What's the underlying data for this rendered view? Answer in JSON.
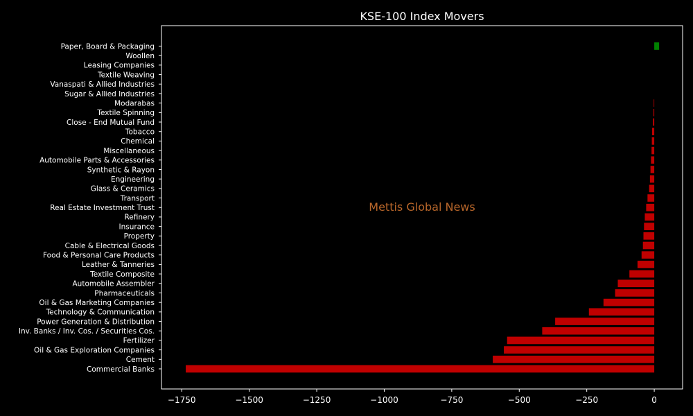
{
  "chart_data": {
    "type": "bar",
    "orientation": "horizontal",
    "title": "KSE-100 Index Movers",
    "xlabel": "",
    "ylabel": "",
    "xlim": [
      -1825,
      105
    ],
    "grid": false,
    "xticks": [
      -1750,
      -1500,
      -1250,
      -1000,
      -750,
      -500,
      -250,
      0
    ],
    "xtick_labels": [
      "−1750",
      "−1500",
      "−1250",
      "−1000",
      "−750",
      "−500",
      "−250",
      "0"
    ],
    "categories": [
      "Paper, Board & Packaging",
      "Woollen",
      "Leasing Companies",
      "Textile Weaving",
      "Vanaspati & Allied Industries",
      "Sugar & Allied Industries",
      "Modarabas",
      "Textile Spinning",
      "Close - End Mutual Fund",
      "Tobacco",
      "Chemical",
      "Miscellaneous",
      "Automobile Parts & Accessories",
      "Synthetic & Rayon",
      "Engineering",
      "Glass & Ceramics",
      "Transport",
      "Real Estate Investment Trust",
      "Refinery",
      "Insurance",
      "Property",
      "Cable & Electrical Goods",
      "Food & Personal Care Products",
      "Leather & Tanneries",
      "Textile Composite",
      "Automobile Assembler",
      "Pharmaceuticals",
      "Oil & Gas Marketing Companies",
      "Technology & Communication",
      "Power Generation & Distribution",
      "Inv. Banks / Inv. Cos. / Securities Cos.",
      "Fertilizer",
      "Oil & Gas Exploration Companies",
      "Cement",
      "Commercial Banks"
    ],
    "values": [
      18,
      0,
      0,
      0,
      0,
      0,
      -2,
      -3,
      -5,
      -8,
      -9,
      -10,
      -12,
      -14,
      -16,
      -19,
      -25,
      -30,
      -35,
      -38,
      -40,
      -42,
      -47,
      -62,
      -92,
      -135,
      -145,
      -188,
      -242,
      -367,
      -415,
      -545,
      -557,
      -598,
      -1735
    ],
    "colors": {
      "positive": "#008000",
      "negative": "#c00000"
    },
    "watermark": {
      "text": "Mettis Global News",
      "color": "#b8662a"
    }
  }
}
